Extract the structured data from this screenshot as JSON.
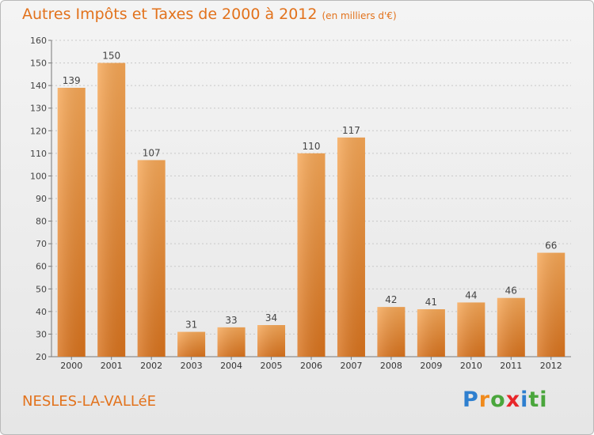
{
  "header": {
    "title": "Autres Impôts et Taxes de 2000 à 2012",
    "subtitle": "(en milliers d'€)"
  },
  "footer": {
    "commune": "NESLES-LA-VALLéE",
    "logo_text": "Proxiti"
  },
  "colors": {
    "accent": "#e2721c",
    "bar_light": "#f6a756",
    "bar_dark": "#d9731d"
  },
  "chart_data": {
    "type": "bar",
    "title": "Autres Impôts et Taxes de 2000 à 2012",
    "subtitle": "(en milliers d'€)",
    "categories": [
      "2000",
      "2001",
      "2002",
      "2003",
      "2004",
      "2005",
      "2006",
      "2007",
      "2008",
      "2009",
      "2010",
      "2011",
      "2012"
    ],
    "values": [
      139,
      150,
      107,
      31,
      33,
      34,
      110,
      117,
      42,
      41,
      44,
      46,
      66
    ],
    "ylim": [
      20,
      160
    ],
    "yticks": [
      20,
      30,
      40,
      50,
      60,
      70,
      80,
      90,
      100,
      110,
      120,
      130,
      140,
      150,
      160
    ],
    "grid": true,
    "data_labels": true,
    "xlabel": "",
    "ylabel": ""
  }
}
